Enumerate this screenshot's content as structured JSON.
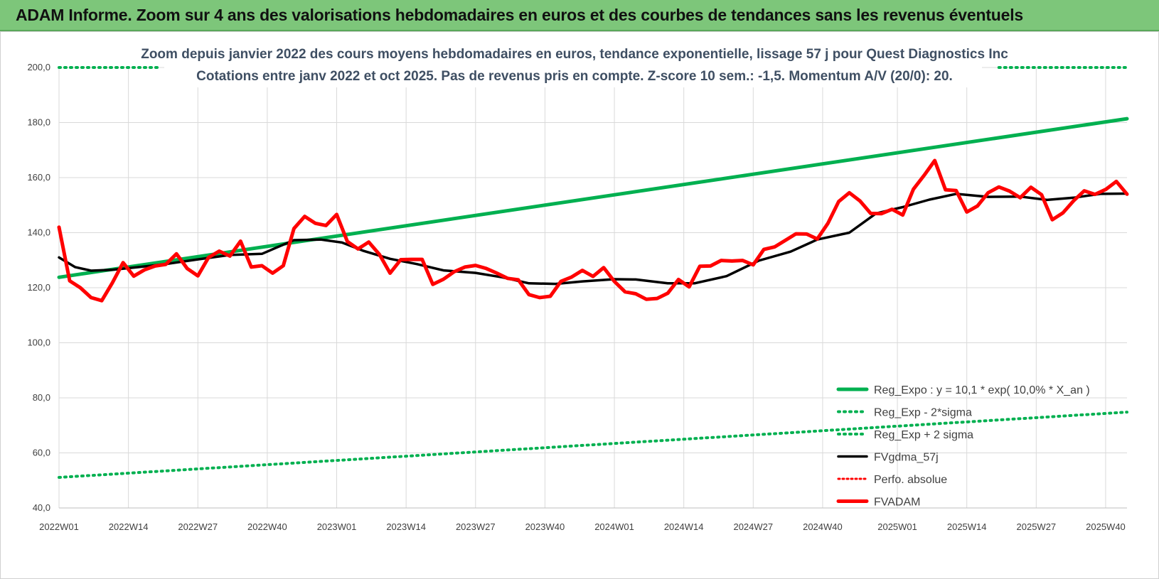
{
  "header": {
    "title": "ADAM Informe. Zoom sur 4 ans des valorisations hebdomadaires en euros et des courbes de tendances sans les revenus éventuels"
  },
  "chart_data": {
    "type": "line",
    "title": "Zoom depuis janvier 2022 des cours moyens hebdomadaires en euros, tendance exponentielle, lissage 57 j pour Quest Diagnostics Inc",
    "subtitle": "Cotations entre janv 2022 et oct 2025. Pas de revenus pris en compte. Z-score 10 sem.: -1,5. Momentum A/V (20/0): 20.",
    "xlabel": "",
    "ylabel": "",
    "ylim": [
      40,
      200
    ],
    "y_ticks": [
      "40,0",
      "60,0",
      "80,0",
      "100,0",
      "120,0",
      "140,0",
      "160,0",
      "180,0",
      "200,0"
    ],
    "x_ticks": [
      "2022W01",
      "2022W14",
      "2022W27",
      "2022W40",
      "2023W01",
      "2023W14",
      "2023W27",
      "2023W40",
      "2024W01",
      "2024W14",
      "2024W27",
      "2024W40",
      "2025W01",
      "2025W14",
      "2025W27",
      "2025W40"
    ],
    "x_tick_weeks": [
      0,
      13,
      26,
      39,
      52,
      65,
      78,
      91,
      104,
      117,
      130,
      143,
      157,
      170,
      183,
      196
    ],
    "total_weeks": 200,
    "grid": "both",
    "legend_position": "bottom-right",
    "colors": {
      "trend": "#00b050",
      "band": "#00b050",
      "smooth": "#000000",
      "perf": "#ff0000",
      "price": "#ff0000"
    },
    "series": [
      {
        "name": "Reg_Expo : y = 10,1 * exp( 10,0% *  X_an )",
        "style": "solid-thick",
        "x": [
          0,
          200
        ],
        "values": [
          123.8,
          181.4
        ]
      },
      {
        "name": "Reg_Exp - 2*sigma",
        "style": "dotted",
        "x": [
          0,
          200
        ],
        "values": [
          51.1,
          74.8
        ]
      },
      {
        "name": "Reg_Exp + 2 sigma",
        "style": "dotted",
        "x": [
          0,
          19,
          176,
          200
        ],
        "values": [
          200,
          200,
          200,
          200
        ],
        "segments": [
          [
            0,
            19
          ],
          [
            176,
            200
          ]
        ]
      },
      {
        "name": "FVgdma_57j",
        "style": "solid",
        "x": [
          0,
          3,
          6,
          10,
          15,
          20,
          26,
          32,
          38,
          44,
          49,
          53,
          57,
          62,
          67,
          72,
          78,
          83,
          88,
          93,
          98,
          104,
          108,
          114,
          119,
          125,
          131,
          137,
          142,
          148,
          153,
          158,
          163,
          168,
          174,
          180,
          185,
          190,
          195,
          200
        ],
        "values": [
          131,
          127.5,
          126.2,
          126.5,
          127.5,
          128.6,
          130.3,
          131.9,
          132.3,
          137.3,
          137.5,
          136.4,
          133.4,
          130.5,
          128.6,
          126.3,
          125.4,
          123.8,
          121.6,
          121.4,
          122.3,
          123.1,
          123,
          121.6,
          121.6,
          124.2,
          129.8,
          133.1,
          137.5,
          140,
          147,
          149.3,
          152,
          154.1,
          153,
          153.1,
          151.9,
          152.7,
          154.1,
          154.2
        ]
      },
      {
        "name": "Perfo. absolue",
        "style": "dotted",
        "x": [],
        "values": []
      },
      {
        "name": "FVADAM",
        "style": "solid-thick",
        "x": [
          0,
          2,
          4,
          6,
          8,
          10,
          12,
          14,
          16,
          18,
          20,
          22,
          24,
          26,
          28,
          30,
          32,
          34,
          36,
          38,
          40,
          42,
          44,
          46,
          48,
          50,
          52,
          54,
          56,
          58,
          60,
          62,
          64,
          66,
          68,
          70,
          72,
          74,
          76,
          78,
          80,
          82,
          84,
          86,
          88,
          90,
          92,
          94,
          96,
          98,
          100,
          102,
          104,
          106,
          108,
          110,
          112,
          114,
          116,
          118,
          120,
          122,
          124,
          126,
          128,
          130,
          132,
          134,
          136,
          138,
          140,
          142,
          144,
          146,
          148,
          150,
          152,
          154,
          156,
          158,
          160,
          162,
          164,
          166,
          168,
          170,
          172,
          174,
          176,
          178,
          180,
          182,
          184,
          186,
          188,
          190,
          192,
          194,
          196,
          198,
          200
        ],
        "values": [
          142,
          122.5,
          120,
          116.4,
          115.3,
          121.8,
          129.1,
          124.2,
          126.5,
          127.9,
          128.5,
          132.3,
          127,
          124.3,
          131,
          133.3,
          131.5,
          136.9,
          127.5,
          128,
          125.3,
          128,
          141.5,
          145.9,
          143.4,
          142.6,
          146.6,
          136.8,
          134.1,
          136.6,
          132.1,
          125.3,
          130.2,
          130.3,
          130.3,
          121.2,
          123.1,
          125.8,
          127.5,
          128.1,
          127,
          125.3,
          123.4,
          122.9,
          117.5,
          116.4,
          116.9,
          122.3,
          123.9,
          126.3,
          124.1,
          127.3,
          122.3,
          118.5,
          117.8,
          115.8,
          116.1,
          118,
          123,
          120.3,
          127.8,
          127.9,
          129.9,
          129.7,
          129.9,
          128.3,
          133.9,
          134.8,
          137.2,
          139.6,
          139.5,
          137.7,
          143.4,
          151.3,
          154.5,
          151.5,
          147,
          146.9,
          148.5,
          146.4,
          155.8,
          160.8,
          166.2,
          155.6,
          155.3,
          147.5,
          149.7,
          154.5,
          156.6,
          155.1,
          152.7,
          156.5,
          153.8,
          144.7,
          147.2,
          151.6,
          155.2,
          153.9,
          155.7,
          158.6,
          154
        ]
      }
    ]
  }
}
